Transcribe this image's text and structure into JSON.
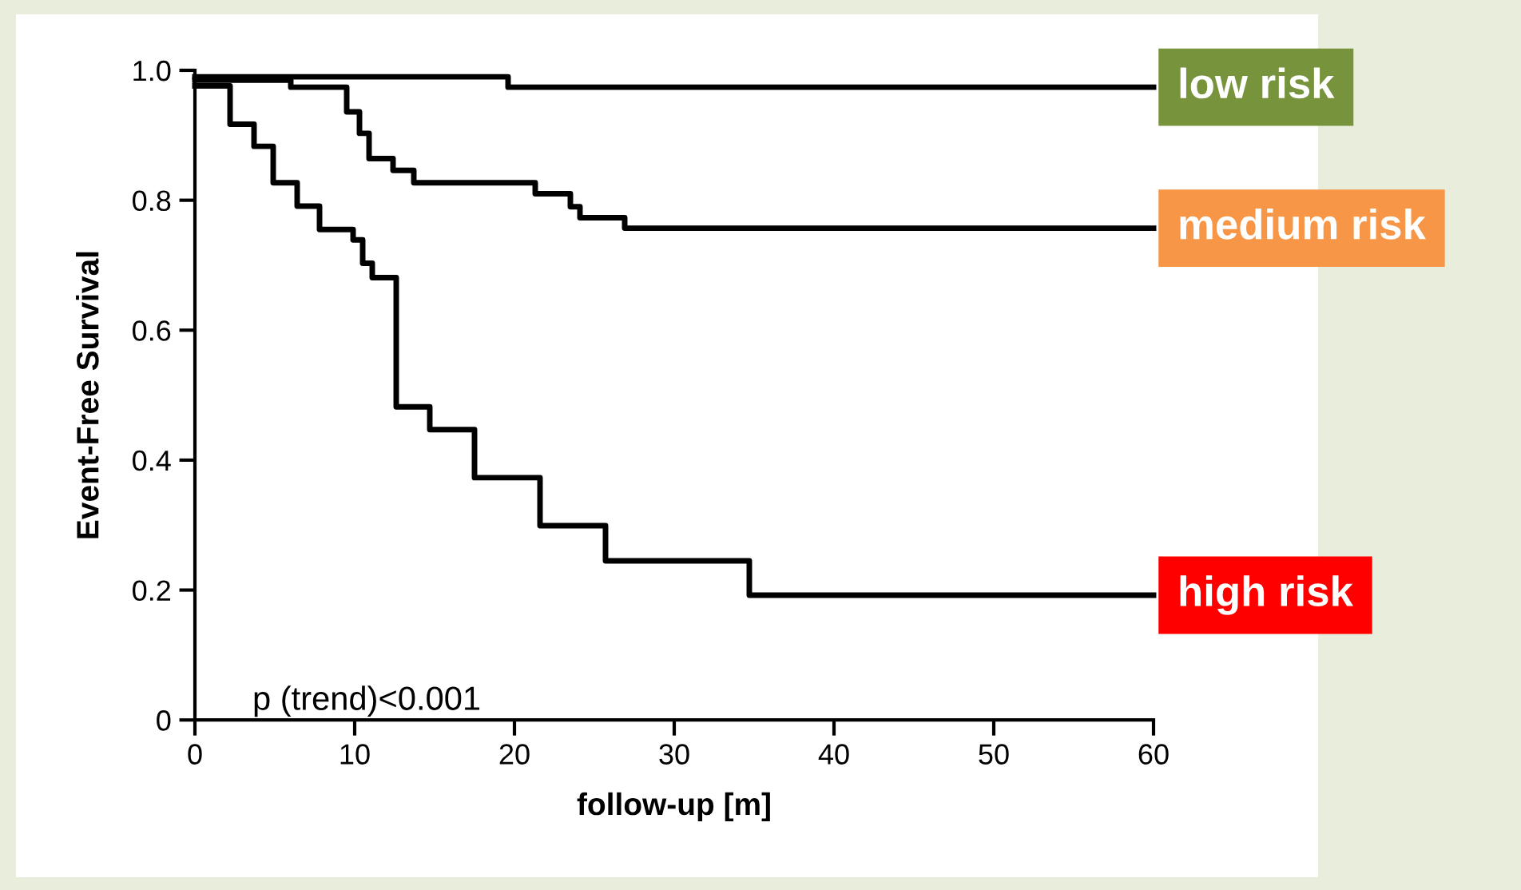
{
  "chart_data": {
    "type": "step",
    "xlabel": "follow-up [m]",
    "ylabel": "Event-Free Survival",
    "xlim": [
      0,
      60
    ],
    "xticks": [
      0,
      10,
      20,
      30,
      40,
      50,
      60
    ],
    "ylim": [
      0,
      1
    ],
    "yticks": [
      0,
      0.2,
      0.4,
      0.6,
      0.8,
      {
        "value": 1,
        "label": "1.0"
      }
    ],
    "grid": false,
    "legend": false,
    "annotations": [
      "p (trend)<0.001"
    ],
    "series": [
      {
        "name": "low risk",
        "color": "#000000",
        "x": [
          0,
          19.6,
          60
        ],
        "values": [
          0.99,
          0.974,
          0.974
        ]
      },
      {
        "name": "medium risk",
        "color": "#000000",
        "x": [
          0,
          6,
          9.5,
          10.3,
          10.9,
          12.4,
          13.7,
          21.3,
          23.5,
          24.1,
          26.9,
          60
        ],
        "values": [
          0.985,
          0.974,
          0.936,
          0.903,
          0.864,
          0.846,
          0.827,
          0.81,
          0.79,
          0.773,
          0.757,
          0.757
        ]
      },
      {
        "name": "high risk",
        "color": "#000000",
        "x": [
          0,
          2.2,
          3.7,
          4.9,
          6.4,
          7.8,
          9.9,
          10.5,
          11.1,
          12.6,
          14.7,
          17.5,
          21.6,
          25.7,
          34.7,
          60
        ],
        "values": [
          0.976,
          0.917,
          0.883,
          0.827,
          0.791,
          0.755,
          0.739,
          0.703,
          0.681,
          0.482,
          0.447,
          0.373,
          0.299,
          0.245,
          0.192,
          0.192
        ]
      }
    ]
  }
}
